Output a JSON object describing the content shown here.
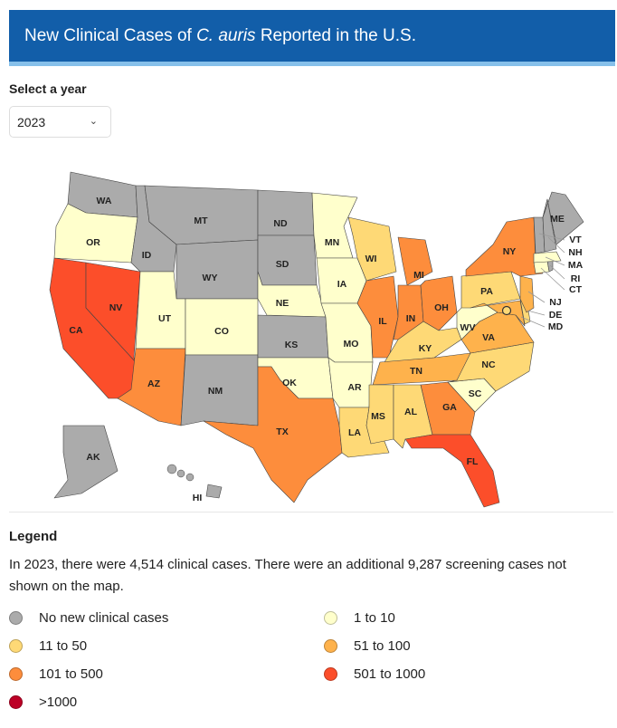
{
  "header": {
    "title_pre": "New Clinical Cases of ",
    "title_italic": "C. auris",
    "title_post": " Reported in the U.S."
  },
  "year_select": {
    "label": "Select a year",
    "value": "2023"
  },
  "colors": {
    "none": "#ababab",
    "c1_10": "#ffffcc",
    "c11_50": "#fed976",
    "c51_100": "#feb24c",
    "c101_500": "#fd8d3c",
    "c501_1000": "#fc4e2a",
    "c1000": "#bd0026",
    "header_bg": "#125ea9",
    "header_border": "#86c0ea"
  },
  "map": {
    "states": [
      {
        "id": "WA",
        "cat": "none"
      },
      {
        "id": "OR",
        "cat": "c1_10"
      },
      {
        "id": "CA",
        "cat": "c501_1000"
      },
      {
        "id": "NV",
        "cat": "c501_1000"
      },
      {
        "id": "ID",
        "cat": "none"
      },
      {
        "id": "MT",
        "cat": "none"
      },
      {
        "id": "WY",
        "cat": "none"
      },
      {
        "id": "UT",
        "cat": "c1_10"
      },
      {
        "id": "AZ",
        "cat": "c101_500"
      },
      {
        "id": "CO",
        "cat": "c1_10"
      },
      {
        "id": "NM",
        "cat": "none"
      },
      {
        "id": "ND",
        "cat": "none"
      },
      {
        "id": "SD",
        "cat": "none"
      },
      {
        "id": "NE",
        "cat": "c1_10"
      },
      {
        "id": "KS",
        "cat": "none"
      },
      {
        "id": "OK",
        "cat": "c1_10"
      },
      {
        "id": "TX",
        "cat": "c101_500"
      },
      {
        "id": "MN",
        "cat": "c1_10"
      },
      {
        "id": "IA",
        "cat": "c1_10"
      },
      {
        "id": "MO",
        "cat": "c1_10"
      },
      {
        "id": "AR",
        "cat": "c1_10"
      },
      {
        "id": "LA",
        "cat": "c11_50"
      },
      {
        "id": "WI",
        "cat": "c11_50"
      },
      {
        "id": "IL",
        "cat": "c101_500"
      },
      {
        "id": "MI",
        "cat": "c101_500"
      },
      {
        "id": "IN",
        "cat": "c101_500"
      },
      {
        "id": "OH",
        "cat": "c101_500"
      },
      {
        "id": "KY",
        "cat": "c11_50"
      },
      {
        "id": "TN",
        "cat": "c51_100"
      },
      {
        "id": "MS",
        "cat": "c11_50"
      },
      {
        "id": "AL",
        "cat": "c11_50"
      },
      {
        "id": "GA",
        "cat": "c101_500"
      },
      {
        "id": "FL",
        "cat": "c501_1000"
      },
      {
        "id": "SC",
        "cat": "c1_10"
      },
      {
        "id": "NC",
        "cat": "c11_50"
      },
      {
        "id": "VA",
        "cat": "c51_100"
      },
      {
        "id": "WV",
        "cat": "c1_10"
      },
      {
        "id": "PA",
        "cat": "c11_50"
      },
      {
        "id": "NY",
        "cat": "c101_500"
      },
      {
        "id": "MD",
        "cat": "c51_100"
      },
      {
        "id": "DE",
        "cat": "c11_50"
      },
      {
        "id": "NJ",
        "cat": "c51_100"
      },
      {
        "id": "CT",
        "cat": "c1_10"
      },
      {
        "id": "RI",
        "cat": "none"
      },
      {
        "id": "MA",
        "cat": "c1_10"
      },
      {
        "id": "VT",
        "cat": "none"
      },
      {
        "id": "NH",
        "cat": "none"
      },
      {
        "id": "ME",
        "cat": "none"
      },
      {
        "id": "AK",
        "cat": "none"
      },
      {
        "id": "HI",
        "cat": "none"
      },
      {
        "id": "DC",
        "cat": "c11_50"
      }
    ]
  },
  "legend": {
    "title": "Legend",
    "description": "In 2023, there were 4,514 clinical cases. There were an additional 9,287 screening cases not shown on the map.",
    "items": [
      {
        "label": "No new clinical cases",
        "cat": "none"
      },
      {
        "label": "1 to 10",
        "cat": "c1_10"
      },
      {
        "label": "11 to 50",
        "cat": "c11_50"
      },
      {
        "label": "51 to 100",
        "cat": "c51_100"
      },
      {
        "label": "101 to 500",
        "cat": "c101_500"
      },
      {
        "label": "501 to 1000",
        "cat": "c501_1000"
      },
      {
        "label": ">1000",
        "cat": "c1000"
      }
    ]
  }
}
